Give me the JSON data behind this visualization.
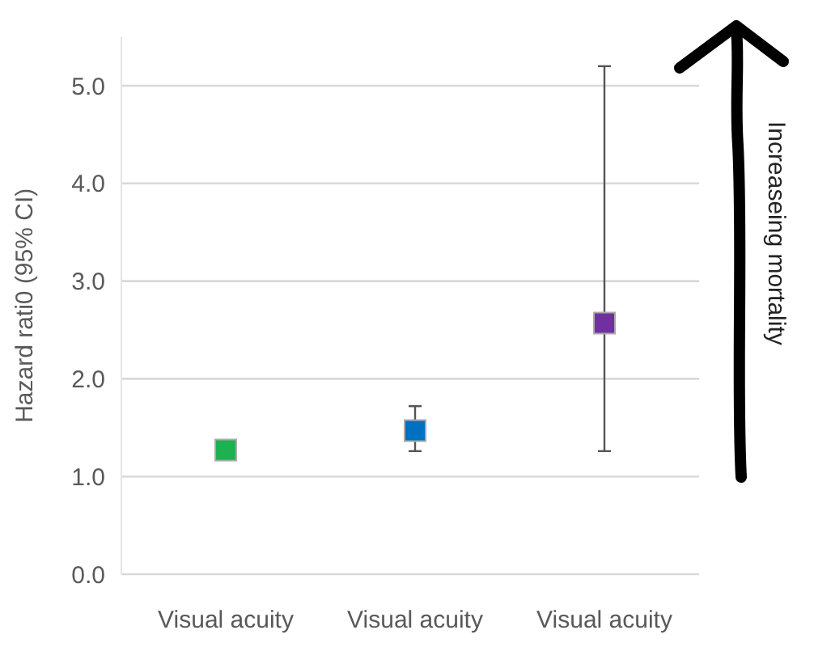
{
  "chart_data": {
    "type": "scatter",
    "ylabel": "Hazard rati0 (95% CI)",
    "categories": [
      "Visual acuity",
      "Visual acuity",
      "Visual acuity"
    ],
    "values": [
      1.27,
      1.47,
      2.57
    ],
    "errors": [
      null,
      [
        1.26,
        1.72
      ],
      [
        1.26,
        5.2
      ]
    ],
    "colors": [
      "#1db152",
      "#0070c0",
      "#7030a0"
    ],
    "marker": "square",
    "ylim": [
      0,
      5.5
    ],
    "yticks": [
      {
        "value": 0,
        "label": "0.0"
      },
      {
        "value": 1,
        "label": "1.0"
      },
      {
        "value": 2,
        "label": "2.0"
      },
      {
        "value": 3,
        "label": "3.0"
      },
      {
        "value": 4,
        "label": "4.0"
      },
      {
        "value": 5,
        "label": "5.0"
      }
    ],
    "grid": "y",
    "annotations": [
      "Increaseing mortality"
    ]
  }
}
